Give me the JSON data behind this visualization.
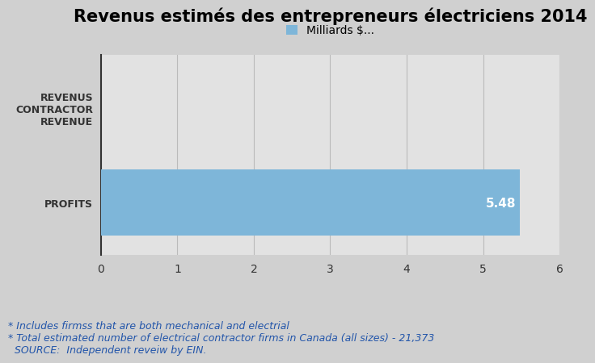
{
  "title": "Revenus estimés des entrepreneurs électriciens 2014",
  "categories": [
    "REVENUS\nCONTRACTOR\nREVENUE",
    "PROFITS"
  ],
  "values": [
    0,
    5.48
  ],
  "bar_color": "#7eb6d9",
  "bar_label_color": "#ffffff",
  "bar_label": "5.48",
  "xlim": [
    0,
    6
  ],
  "xticks": [
    0,
    1,
    2,
    3,
    4,
    5,
    6
  ],
  "ylim": [
    -0.55,
    1.55
  ],
  "legend_label": "Milliards $...",
  "legend_color": "#7eb6d9",
  "background_color": "#d0d0d0",
  "plot_bg_color": "#e2e2e2",
  "title_fontsize": 15,
  "ytick_fontsize": 9,
  "xtick_fontsize": 10,
  "bar_height": 0.7,
  "footnotes": [
    "* Includes firmss that are both mechanical and electrial",
    "* Total estimated number of electrical contractor firms in Canada (all sizes) - 21,373",
    "  SOURCE:  Independent reveiw by EIN."
  ],
  "footnote_fontsize": 9,
  "footnote_color": "#2255aa"
}
